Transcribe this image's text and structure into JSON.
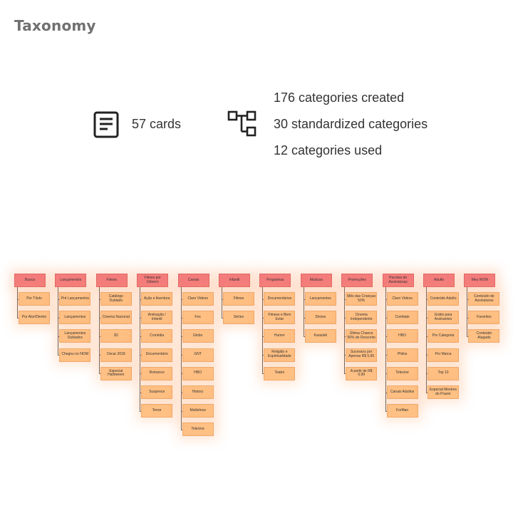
{
  "page": {
    "title": "Taxonomy"
  },
  "stats": {
    "cards": "57 cards",
    "created": "176 categories created",
    "standardized": "30 standardized categories",
    "used": "12 categories used",
    "cards_icon": "document-icon",
    "categories_icon": "hierarchy-icon"
  },
  "colors": {
    "header": "#f37c7c",
    "card": "#ffc084",
    "line": "#555555"
  },
  "columns": [
    {
      "title": "Busca",
      "cards": [
        "Por Título",
        "Por Ator/Diretor"
      ]
    },
    {
      "title": "Lançamentos",
      "cards": [
        "Pré Lançamentos",
        "Lançamentos",
        "Lançamentos Dublados",
        "Chegou no NOW"
      ]
    },
    {
      "title": "Filmes",
      "cards": [
        "Catálogo Dublado",
        "Cinema Nacional",
        "3D",
        "Oscar 2018",
        "Especial Halloween"
      ]
    },
    {
      "title": "Filmes por Gênero",
      "cards": [
        "Ação e Aventura",
        "Animação / Infantil",
        "Comédia",
        "Documentário",
        "Romance",
        "Suspence",
        "Terror"
      ]
    },
    {
      "title": "Canais",
      "cards": [
        "Claro Videos",
        "Fox",
        "Globo",
        "GNT",
        "HBO",
        "History",
        "Multishow",
        "Telecine"
      ]
    },
    {
      "title": "Infantil",
      "cards": [
        "Filmes",
        "Séries"
      ]
    },
    {
      "title": "Programas",
      "cards": [
        "Documentários",
        "Fitness e Bem Estar",
        "Humor",
        "Religião e Espiritualidade",
        "Teatro"
      ]
    },
    {
      "title": "Músicas",
      "cards": [
        "Lançamentos",
        "Shows",
        "Karaokê"
      ]
    },
    {
      "title": "Promoções",
      "cards": [
        "Mês das Crianças 50%",
        "Cinema Independente",
        "Última Chance 50% de Desconto",
        "Sucessos por Apenas R$ 5,90",
        "A partir de R$ 0,99"
      ]
    },
    {
      "title": "Pacotes de Assinaturas",
      "cards": [
        "Claro Videos",
        "Combate",
        "HBO",
        "Philos",
        "Telecine",
        "Canais Adultos",
        "ForMan"
      ]
    },
    {
      "title": "Adulto",
      "cards": [
        "Conteúdo Adulto",
        "Grátis para Assinantes",
        "Por Categoria",
        "Por Marca",
        "Top 10",
        "Especial Mestres do Prazer"
      ]
    },
    {
      "title": "Meu NOW",
      "cards": [
        "Conteúdo de Assinaturas",
        "Favoritos",
        "Conteúdo Alugado"
      ]
    }
  ]
}
